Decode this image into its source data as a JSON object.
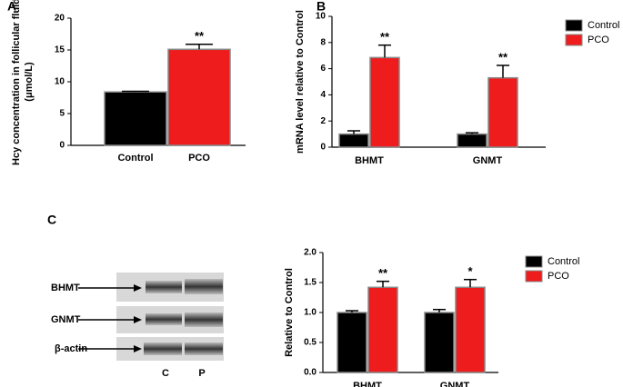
{
  "chart_data": [
    {
      "type": "bar",
      "panel": "A",
      "ylabel": [
        "Hcy concentration in follicular fluid",
        "(μmol/L)"
      ],
      "categories": [
        "Control",
        "PCO"
      ],
      "values": [
        8.4,
        15.1
      ],
      "errors": [
        0.1,
        0.8
      ],
      "colors": [
        "#000000",
        "#ee1c1c"
      ],
      "significance": [
        null,
        "**"
      ],
      "ylim": [
        0,
        20
      ],
      "yticks": [
        0,
        5,
        10,
        15,
        20
      ]
    },
    {
      "type": "grouped_bar",
      "panel": "B",
      "ylabel": [
        "mRNA level relative to Control"
      ],
      "categories": [
        "BHMT",
        "GNMT"
      ],
      "series": [
        {
          "name": "Control",
          "color": "#000000",
          "values": [
            1.0,
            1.0
          ],
          "errors": [
            0.25,
            0.1
          ],
          "significance": [
            null,
            null
          ]
        },
        {
          "name": "PCO",
          "color": "#ee1c1c",
          "values": [
            6.85,
            5.3
          ],
          "errors": [
            0.95,
            0.95
          ],
          "significance": [
            "**",
            "**"
          ]
        }
      ],
      "ylim": [
        0,
        10
      ],
      "yticks": [
        0,
        2,
        4,
        6,
        8,
        10
      ]
    },
    {
      "type": "grouped_bar",
      "panel": "C",
      "ylabel": [
        "Relative to Control"
      ],
      "categories": [
        "BHMT",
        "GNMT"
      ],
      "series": [
        {
          "name": "Control",
          "color": "#000000",
          "values": [
            1.0,
            1.0
          ],
          "errors": [
            0.03,
            0.05
          ],
          "significance": [
            null,
            null
          ]
        },
        {
          "name": "PCO",
          "color": "#ee1c1c",
          "values": [
            1.42,
            1.42
          ],
          "errors": [
            0.1,
            0.13
          ],
          "significance": [
            "**",
            "*"
          ]
        }
      ],
      "ylim": [
        0,
        2.0
      ],
      "yticks": [
        {
          "value": 0,
          "label": "0.0"
        },
        {
          "value": 0.5,
          "label": "0.5"
        },
        {
          "value": 1.0,
          "label": "1.0"
        },
        {
          "value": 1.5,
          "label": "1.5"
        },
        {
          "value": 2.0,
          "label": "2.0"
        }
      ]
    }
  ],
  "blot": {
    "rows": [
      "BHMT",
      "GNMT",
      "β-actin"
    ],
    "lanes": [
      "C",
      "P"
    ]
  }
}
